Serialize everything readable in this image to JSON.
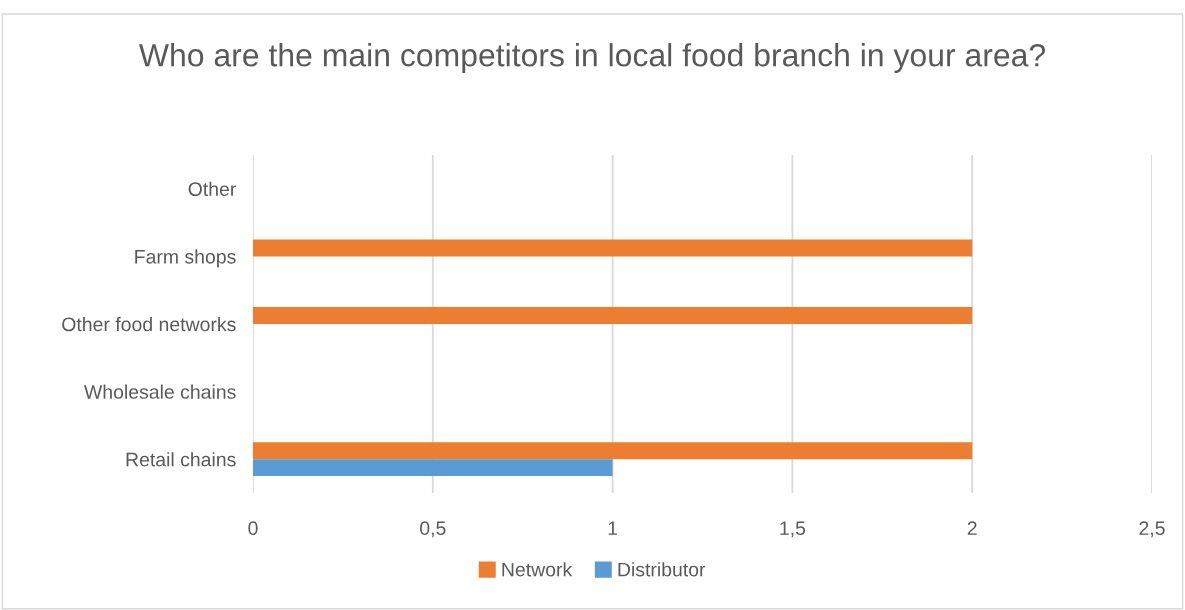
{
  "chart_data": {
    "type": "bar",
    "orientation": "horizontal",
    "title": "Who are the main competitors in local food branch in your area?",
    "categories": [
      "Other",
      "Farm shops",
      "Other food networks",
      "Wholesale chains",
      "Retail chains"
    ],
    "series": [
      {
        "name": "Network",
        "color": "#ed7d31",
        "values": [
          0,
          2,
          2,
          0,
          2
        ]
      },
      {
        "name": "Distributor",
        "color": "#5b9bd5",
        "values": [
          0,
          0,
          0,
          0,
          1
        ]
      }
    ],
    "xlim": [
      0,
      2.5
    ],
    "xticks": [
      0,
      {
        "value": 0.5,
        "label": "0,5"
      },
      1,
      {
        "value": 1.5,
        "label": "1,5"
      },
      2,
      {
        "value": 2.5,
        "label": "2,5"
      }
    ],
    "grid": "x",
    "legend": "bottom"
  }
}
